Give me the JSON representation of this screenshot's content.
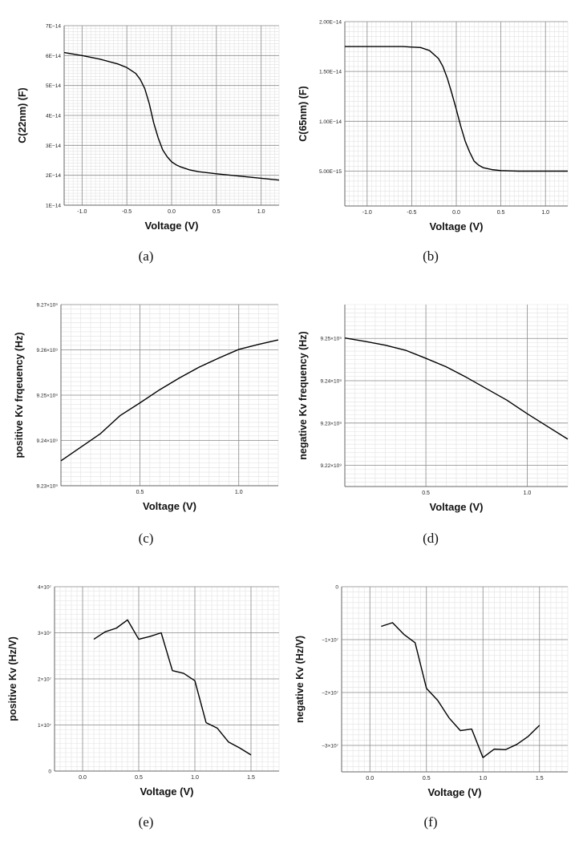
{
  "panel_captions": [
    "(a)",
    "(b)",
    "(c)",
    "(d)",
    "(e)",
    "(f)"
  ],
  "colors": {
    "line": "#000000",
    "grid_major": "#8c8c8c",
    "grid_minor": "#e2e2e2",
    "axis": "#666666"
  },
  "chart_data": [
    {
      "type": "line",
      "xlabel": "Voltage (V)",
      "ylabel": "C(22nm) (F)",
      "xlim": [
        -1.2,
        1.2
      ],
      "ylim": [
        1e-14,
        7e-14
      ],
      "grid": true,
      "xticks": [
        -1.0,
        -0.5,
        0.0,
        0.5,
        1.0
      ],
      "xtick_labels": [
        "-1.0",
        "-0.5",
        "0.0",
        "0.5",
        "1.0"
      ],
      "yticks": [
        1e-14,
        2e-14,
        3e-14,
        4e-14,
        5e-14,
        6e-14,
        7e-14
      ],
      "ytick_labels": [
        "1E−14",
        "2E−14",
        "3E−14",
        "4E−14",
        "5E−14",
        "6E−14",
        "7E−14"
      ],
      "series": [
        {
          "x": [
            -1.2,
            -1.0,
            -0.8,
            -0.6,
            -0.5,
            -0.4,
            -0.35,
            -0.3,
            -0.25,
            -0.2,
            -0.15,
            -0.1,
            -0.05,
            0.0,
            0.05,
            0.1,
            0.15,
            0.2,
            0.3,
            0.5,
            0.8,
            1.0,
            1.2
          ],
          "y": [
            6.1e-14,
            6e-14,
            5.88e-14,
            5.72e-14,
            5.6e-14,
            5.4e-14,
            5.2e-14,
            4.9e-14,
            4.4e-14,
            3.75e-14,
            3.25e-14,
            2.85e-14,
            2.62e-14,
            2.45e-14,
            2.35e-14,
            2.28e-14,
            2.23e-14,
            2.18e-14,
            2.12e-14,
            2.05e-14,
            1.96e-14,
            1.9e-14,
            1.84e-14
          ]
        }
      ]
    },
    {
      "type": "line",
      "xlabel": "Voltage (V)",
      "ylabel": "C(65nm) (F)",
      "xlim": [
        -1.25,
        1.25
      ],
      "ylim": [
        1.5e-15,
        2e-14
      ],
      "grid": true,
      "xticks": [
        -1.0,
        -0.5,
        0.0,
        0.5,
        1.0
      ],
      "xtick_labels": [
        "-1.0",
        "-0.5",
        "0.0",
        "0.5",
        "1.0"
      ],
      "yticks": [
        5e-15,
        1e-14,
        1.5e-14,
        2e-14
      ],
      "ytick_labels": [
        "5.00E−15",
        "1.00E−14",
        "1.50E−14",
        "2.00E−14"
      ],
      "series": [
        {
          "x": [
            -1.25,
            -1.0,
            -0.6,
            -0.4,
            -0.3,
            -0.2,
            -0.15,
            -0.1,
            -0.05,
            0.0,
            0.05,
            0.1,
            0.15,
            0.2,
            0.25,
            0.3,
            0.4,
            0.5,
            0.7,
            1.0,
            1.25
          ],
          "y": [
            1.75e-14,
            1.75e-14,
            1.75e-14,
            1.74e-14,
            1.71e-14,
            1.63e-14,
            1.55e-14,
            1.43e-14,
            1.28e-14,
            1.12e-14,
            9.5e-15,
            8e-15,
            6.9e-15,
            6e-15,
            5.6e-15,
            5.35e-15,
            5.15e-15,
            5.05e-15,
            5e-15,
            5e-15,
            5e-15
          ]
        }
      ]
    },
    {
      "type": "line",
      "xlabel": "Voltage (V)",
      "ylabel": "positive Kv frqeuency (Hz)",
      "xlim": [
        0.1,
        1.2
      ],
      "ylim": [
        9230000000.0,
        9270000000.0
      ],
      "grid": true,
      "xticks": [
        0.5,
        1.0
      ],
      "xtick_labels": [
        "0.5",
        "1.0"
      ],
      "yticks": [
        9230000000.0,
        9240000000.0,
        9250000000.0,
        9260000000.0,
        9270000000.0
      ],
      "ytick_labels": [
        "9.23×10⁹",
        "9.24×10⁹",
        "9.25×10⁹",
        "9.26×10⁹",
        "9.27×10⁹"
      ],
      "series": [
        {
          "x": [
            0.1,
            0.3,
            0.4,
            0.5,
            0.6,
            0.7,
            0.8,
            0.9,
            1.0,
            1.1,
            1.2
          ],
          "y": [
            9235500000.0,
            9241500000.0,
            9245500000.0,
            9248300000.0,
            9251200000.0,
            9253800000.0,
            9256200000.0,
            9258200000.0,
            9260100000.0,
            9261200000.0,
            9262200000.0
          ]
        }
      ]
    },
    {
      "type": "line",
      "xlabel": "Voltage (V)",
      "ylabel": "negative Kv frequency (Hz)",
      "xlim": [
        0.1,
        1.2
      ],
      "ylim": [
        9215000000.0,
        9258000000.0
      ],
      "grid": true,
      "xticks": [
        0.5,
        1.0
      ],
      "xtick_labels": [
        "0.5",
        "1.0"
      ],
      "yticks": [
        9220000000.0,
        9230000000.0,
        9240000000.0,
        9250000000.0
      ],
      "ytick_labels": [
        "9.22×10⁹",
        "9.23×10⁹",
        "9.24×10⁹",
        "9.25×10⁹"
      ],
      "series": [
        {
          "x": [
            0.1,
            0.2,
            0.3,
            0.4,
            0.5,
            0.6,
            0.7,
            0.8,
            0.9,
            1.0,
            1.1,
            1.2
          ],
          "y": [
            9250100000.0,
            9249300000.0,
            9248400000.0,
            9247200000.0,
            9245300000.0,
            9243300000.0,
            9240800000.0,
            9238100000.0,
            9235400000.0,
            9232200000.0,
            9229200000.0,
            9226200000.0
          ]
        }
      ]
    },
    {
      "type": "line",
      "xlabel": "Voltage (V)",
      "ylabel": "positive Kv (Hz/V)",
      "xlim": [
        -0.25,
        1.75
      ],
      "ylim": [
        0,
        40000000.0
      ],
      "grid": true,
      "xticks": [
        0.0,
        0.5,
        1.0,
        1.5
      ],
      "xtick_labels": [
        "0.0",
        "0.5",
        "1.0",
        "1.5"
      ],
      "yticks": [
        0,
        10000000.0,
        20000000.0,
        30000000.0,
        40000000.0
      ],
      "ytick_labels": [
        "0",
        "1×10⁷",
        "2×10⁷",
        "3×10⁷",
        "4×10⁷"
      ],
      "series": [
        {
          "x": [
            0.1,
            0.2,
            0.3,
            0.4,
            0.5,
            0.6,
            0.7,
            0.8,
            0.9,
            1.0,
            1.1,
            1.2,
            1.3,
            1.4,
            1.5
          ],
          "y": [
            28600000.0,
            30200000.0,
            31000000.0,
            32800000.0,
            28600000.0,
            29200000.0,
            30000000.0,
            21800000.0,
            21200000.0,
            19600000.0,
            10500000.0,
            9300000.0,
            6300000.0,
            5000000.0,
            3500000.0
          ]
        }
      ]
    },
    {
      "type": "line",
      "xlabel": "Voltage (V)",
      "ylabel": "negative Kv (Hz/V)",
      "xlim": [
        -0.25,
        1.75
      ],
      "ylim": [
        -35000000.0,
        0
      ],
      "grid": true,
      "xticks": [
        0.0,
        0.5,
        1.0,
        1.5
      ],
      "xtick_labels": [
        "0.0",
        "0.5",
        "1.0",
        "1.5"
      ],
      "yticks": [
        0,
        -10000000.0,
        -20000000.0,
        -30000000.0
      ],
      "ytick_labels": [
        "0",
        "−1×10⁷",
        "−2×10⁷",
        "−3×10⁷"
      ],
      "series": [
        {
          "x": [
            0.1,
            0.2,
            0.3,
            0.4,
            0.5,
            0.6,
            0.7,
            0.8,
            0.9,
            1.0,
            1.1,
            1.2,
            1.3,
            1.4,
            1.5
          ],
          "y": [
            -7500000.0,
            -6800000.0,
            -9000000.0,
            -10600000.0,
            -19200000.0,
            -21500000.0,
            -24800000.0,
            -27200000.0,
            -26900000.0,
            -32300000.0,
            -30700000.0,
            -30800000.0,
            -29800000.0,
            -28300000.0,
            -26200000.0
          ]
        }
      ]
    }
  ]
}
